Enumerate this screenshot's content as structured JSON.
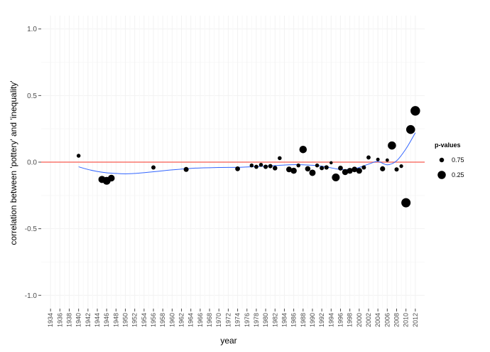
{
  "chart_data": {
    "type": "scatter",
    "xlabel": "year",
    "ylabel": "correlation between 'pottery' and 'inequality'",
    "xlim": [
      1932,
      2014
    ],
    "ylim": [
      -1.1,
      1.1
    ],
    "y_ticks": [
      "1.0",
      "0.5",
      "0.0",
      "-0.5",
      "-1.0"
    ],
    "y_tick_values": [
      1.0,
      0.5,
      0.0,
      -0.5,
      -1.0
    ],
    "x_ticks": [
      "1934",
      "1936",
      "1938",
      "1940",
      "1942",
      "1944",
      "1946",
      "1948",
      "1950",
      "1952",
      "1954",
      "1956",
      "1958",
      "1960",
      "1962",
      "1964",
      "1966",
      "1968",
      "1970",
      "1972",
      "1974",
      "1976",
      "1978",
      "1980",
      "1982",
      "1984",
      "1986",
      "1988",
      "1990",
      "1992",
      "1994",
      "1996",
      "1998",
      "2000",
      "2002",
      "2004",
      "2006",
      "2008",
      "2010",
      "2012"
    ],
    "x_tick_values": [
      1934,
      1936,
      1938,
      1940,
      1942,
      1944,
      1946,
      1948,
      1950,
      1952,
      1954,
      1956,
      1958,
      1960,
      1962,
      1964,
      1966,
      1968,
      1970,
      1972,
      1974,
      1976,
      1978,
      1980,
      1982,
      1984,
      1986,
      1988,
      1990,
      1992,
      1994,
      1996,
      1998,
      2000,
      2002,
      2004,
      2006,
      2008,
      2010,
      2012
    ],
    "grid": true,
    "reference_line": {
      "y": 0,
      "color": "#f8766d"
    },
    "smooth_line": {
      "color": "#3366ff",
      "x": [
        1940,
        1942,
        1944,
        1946,
        1948,
        1950,
        1952,
        1956,
        1960,
        1965,
        1970,
        1975,
        1980,
        1985,
        1988,
        1992,
        1996,
        1999,
        2002,
        2004,
        2006,
        2008,
        2010,
        2012
      ],
      "y": [
        -0.035,
        -0.055,
        -0.07,
        -0.08,
        -0.085,
        -0.088,
        -0.085,
        -0.072,
        -0.058,
        -0.045,
        -0.04,
        -0.038,
        -0.03,
        -0.02,
        -0.02,
        -0.03,
        -0.055,
        -0.05,
        -0.015,
        0.005,
        -0.02,
        0.01,
        0.1,
        0.22
      ]
    },
    "series": [
      {
        "points": [
          {
            "x": 1940,
            "y": 0.048,
            "p": 0.85
          },
          {
            "x": 1945,
            "y": -0.13,
            "p": 0.4
          },
          {
            "x": 1946,
            "y": -0.14,
            "p": 0.3
          },
          {
            "x": 1947,
            "y": -0.12,
            "p": 0.45
          },
          {
            "x": 1956,
            "y": -0.04,
            "p": 0.8
          },
          {
            "x": 1963,
            "y": -0.055,
            "p": 0.7
          },
          {
            "x": 1974,
            "y": -0.05,
            "p": 0.72
          },
          {
            "x": 1977,
            "y": -0.025,
            "p": 0.85
          },
          {
            "x": 1978,
            "y": -0.035,
            "p": 0.82
          },
          {
            "x": 1979,
            "y": -0.02,
            "p": 0.85
          },
          {
            "x": 1980,
            "y": -0.035,
            "p": 0.78
          },
          {
            "x": 1981,
            "y": -0.03,
            "p": 0.8
          },
          {
            "x": 1982,
            "y": -0.045,
            "p": 0.75
          },
          {
            "x": 1983,
            "y": 0.03,
            "p": 0.85
          },
          {
            "x": 1985,
            "y": -0.055,
            "p": 0.6
          },
          {
            "x": 1986,
            "y": -0.065,
            "p": 0.55
          },
          {
            "x": 1987,
            "y": -0.025,
            "p": 0.85
          },
          {
            "x": 1988,
            "y": 0.095,
            "p": 0.35
          },
          {
            "x": 1989,
            "y": -0.05,
            "p": 0.65
          },
          {
            "x": 1990,
            "y": -0.08,
            "p": 0.5
          },
          {
            "x": 1991,
            "y": -0.025,
            "p": 0.85
          },
          {
            "x": 1992,
            "y": -0.045,
            "p": 0.8
          },
          {
            "x": 1993,
            "y": -0.04,
            "p": 0.78
          },
          {
            "x": 1994,
            "y": -0.005,
            "p": 0.95
          },
          {
            "x": 1995,
            "y": -0.115,
            "p": 0.3
          },
          {
            "x": 1996,
            "y": -0.045,
            "p": 0.72
          },
          {
            "x": 1997,
            "y": -0.075,
            "p": 0.55
          },
          {
            "x": 1998,
            "y": -0.065,
            "p": 0.58
          },
          {
            "x": 1999,
            "y": -0.055,
            "p": 0.62
          },
          {
            "x": 2000,
            "y": -0.065,
            "p": 0.58
          },
          {
            "x": 2001,
            "y": -0.04,
            "p": 0.8
          },
          {
            "x": 2002,
            "y": 0.035,
            "p": 0.82
          },
          {
            "x": 2004,
            "y": 0.02,
            "p": 0.9
          },
          {
            "x": 2005,
            "y": -0.05,
            "p": 0.68
          },
          {
            "x": 2006,
            "y": 0.015,
            "p": 0.92
          },
          {
            "x": 2007,
            "y": 0.125,
            "p": 0.25
          },
          {
            "x": 2008,
            "y": -0.055,
            "p": 0.8
          },
          {
            "x": 2009,
            "y": -0.03,
            "p": 0.88
          },
          {
            "x": 2010,
            "y": -0.305,
            "p": 0.1
          },
          {
            "x": 2011,
            "y": 0.245,
            "p": 0.15
          },
          {
            "x": 2012,
            "y": 0.385,
            "p": 0.05
          }
        ]
      }
    ],
    "legend": {
      "title": "p-values",
      "position": "right",
      "entries": [
        {
          "label": "0.75",
          "p": 0.75
        },
        {
          "label": "0.25",
          "p": 0.25
        }
      ]
    },
    "point_color": "#000000"
  }
}
